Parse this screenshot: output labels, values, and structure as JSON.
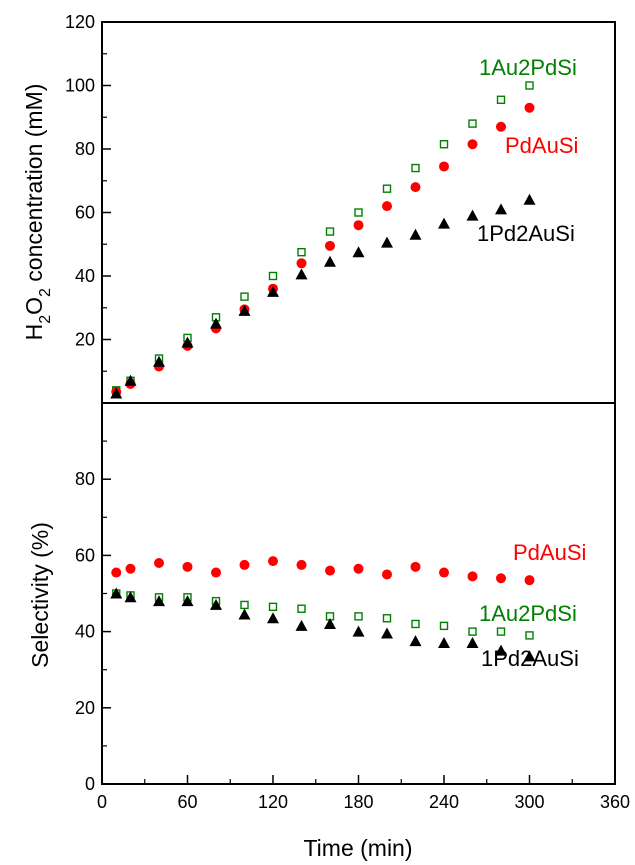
{
  "chart_data": [
    {
      "type": "scatter",
      "panel": "top",
      "ylabel": {
        "main": "H",
        "sub1": "2",
        "mid": "O",
        "sub2": "2",
        "rest": " concentration (mM)"
      },
      "ylim": [
        0,
        120
      ],
      "yticks": [
        20,
        40,
        60,
        80,
        100,
        120
      ],
      "x": [
        10,
        20,
        40,
        60,
        80,
        100,
        120,
        140,
        160,
        180,
        200,
        220,
        240,
        260,
        280,
        300
      ],
      "series": [
        {
          "name": "1Au2PdSi",
          "marker": "open-square",
          "color": "#008000",
          "values": [
            4,
            7,
            14,
            20.5,
            27,
            33.5,
            40,
            47.5,
            54,
            60,
            67.5,
            74,
            81.5,
            88,
            95.5,
            100
          ]
        },
        {
          "name": "PdAuSi",
          "marker": "filled-circle",
          "color": "#ff0000",
          "values": [
            3.5,
            6,
            11.5,
            18,
            23.5,
            29.5,
            36,
            44,
            49.5,
            56,
            62,
            68,
            74.5,
            81.5,
            87,
            93
          ]
        },
        {
          "name": "1Pd2AuSi",
          "marker": "filled-triangle",
          "color": "#000000",
          "values": [
            3,
            7,
            13,
            19,
            25,
            29,
            35,
            40.5,
            44.5,
            47.5,
            50.5,
            53,
            56.5,
            59,
            61,
            64
          ]
        }
      ]
    },
    {
      "type": "scatter",
      "panel": "bottom",
      "ylabel": "Selectivity (%)",
      "xlabel": "Time (min)",
      "xlim": [
        0,
        360
      ],
      "xticks": [
        0,
        60,
        120,
        180,
        240,
        300,
        360
      ],
      "ylim": [
        0,
        100
      ],
      "yticks": [
        0,
        20,
        40,
        60,
        80
      ],
      "x": [
        10,
        20,
        40,
        60,
        80,
        100,
        120,
        140,
        160,
        180,
        200,
        220,
        240,
        260,
        280,
        300
      ],
      "series": [
        {
          "name": "PdAuSi",
          "marker": "filled-circle",
          "color": "#ff0000",
          "values": [
            55.5,
            56.5,
            58,
            57,
            55.5,
            57.5,
            58.5,
            57.5,
            56,
            56.5,
            55,
            57,
            55.5,
            54.5,
            54,
            53.5
          ]
        },
        {
          "name": "1Au2PdSi",
          "marker": "open-square",
          "color": "#008000",
          "values": [
            50,
            49.5,
            49,
            49,
            48,
            47,
            46.5,
            46,
            44,
            44,
            43.5,
            42,
            41.5,
            40,
            40,
            39
          ]
        },
        {
          "name": "1Pd2AuSi",
          "marker": "filled-triangle",
          "color": "#000000",
          "values": [
            50,
            49,
            48,
            48,
            47,
            44.5,
            43.5,
            41.5,
            42,
            40,
            39.5,
            37.5,
            37,
            37,
            35,
            33.5
          ]
        }
      ]
    }
  ]
}
